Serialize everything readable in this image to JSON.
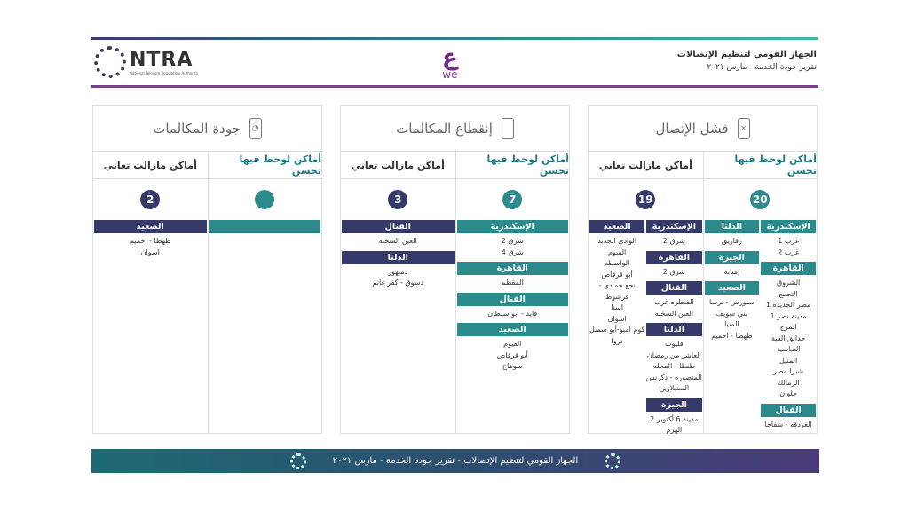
{
  "header": {
    "title": "الجهاز القومي لتنظيم الإتصالات",
    "subtitle": "تقرير جودة الخدمة - مارس ٢٠٢١",
    "ntra_logo": "NTRA",
    "ntra_sub": "National Telecom Regulatory Authority",
    "we_logo": "we"
  },
  "colors": {
    "teal": "#2a8a8c",
    "navy": "#363a6b",
    "purple": "#7a3f8a"
  },
  "cards": [
    {
      "title": "فشل الإتصال",
      "icon": "phone-x-icon",
      "icon_glyph": "×",
      "improved": {
        "label": "أماكن لوحظ فيها تحسن",
        "count": "20",
        "groups": [
          {
            "region": "الإسكندرية",
            "places": [
              "غرب 1",
              "غرب 2"
            ]
          },
          {
            "region": "القاهرة",
            "places": [
              "الشروق",
              "التجمع",
              "مصر الجديدة 1",
              "مدينة نصر 1",
              "المرج",
              "حدائق القبة",
              "العباسية",
              "المنيل",
              "شبرا مصر",
              "الزمالك",
              "حلوان"
            ]
          },
          {
            "region": "القنال",
            "places": [
              "الغردقه - سفاجا"
            ]
          }
        ]
      },
      "improved2": {
        "groups": [
          {
            "region": "الدلتا",
            "places": [
              "زقازيق"
            ]
          },
          {
            "region": "الجيزة",
            "places": [
              "إمبابة"
            ]
          },
          {
            "region": "الصعيد",
            "places": [
              "سنورس - ترسا",
              "بني سويف",
              "المنيا",
              "طهطا - اخميم"
            ]
          }
        ]
      },
      "suffering": {
        "label": "أماكن مازالت تعاني",
        "count": "19",
        "groups": [
          {
            "region": "الإسكندرية",
            "places": [
              "شرق 2"
            ]
          },
          {
            "region": "القاهرة",
            "places": [
              "شرق 2"
            ]
          },
          {
            "region": "القنال",
            "places": [
              "القنطره غرب",
              "العين السخنه"
            ]
          },
          {
            "region": "الدلتا",
            "places": [
              "قليوب",
              "العاشر من رمضان",
              "طنطا - المحله",
              "المنصوره - دكرنس",
              "السنبلاوين"
            ]
          },
          {
            "region": "الجيزة",
            "places": [
              "مدينة 6 أكتوبر 2",
              "الهرم"
            ]
          }
        ]
      },
      "suffering2": {
        "groups": [
          {
            "region": "الصعيد",
            "places": [
              "الوادي الجديد",
              "الفيوم",
              "الواسطه",
              "أبو قرقاص",
              "نجع حمادي - فرشوط",
              "اسنا",
              "اسوان",
              "كوم امبو-أبو سمبل",
              "دروا"
            ]
          }
        ]
      }
    },
    {
      "title": "إنقطاع المكالمات",
      "icon": "phone-icon",
      "icon_glyph": "",
      "improved": {
        "label": "أماكن لوحظ فيها تحسن",
        "count": "7",
        "groups": [
          {
            "region": "الإسكندرية",
            "places": [
              "شرق 2",
              "شرق 4"
            ]
          },
          {
            "region": "القاهرة",
            "places": [
              "المقطم"
            ]
          },
          {
            "region": "القنال",
            "places": [
              "فايد - أبو سلطان"
            ]
          },
          {
            "region": "الصعيد",
            "places": [
              "الفيوم",
              "أبو قرقاص",
              "سوهاج"
            ]
          }
        ]
      },
      "suffering": {
        "label": "أماكن مازالت تعاني",
        "count": "3",
        "groups": [
          {
            "region": "القنال",
            "places": [
              "العين السخنه"
            ]
          },
          {
            "region": "الدلتا",
            "places": [
              "دمنهور",
              "دسوق - كفر غانم"
            ]
          }
        ]
      }
    },
    {
      "title": "جودة المكالمات",
      "icon": "phone-ear-icon",
      "icon_glyph": "◔",
      "improved": {
        "label": "أماكن لوحظ فيها تحسن",
        "count": "",
        "groups": [
          {
            "region": "",
            "places": []
          }
        ]
      },
      "suffering": {
        "label": "أماكن مازالت تعاني",
        "count": "2",
        "groups": [
          {
            "region": "الصعيد",
            "places": [
              "طهطا - اخميم",
              "اسوان"
            ]
          }
        ]
      }
    }
  ],
  "footer": {
    "text": "الجهاز القومي لتنظيم الإتصالات - تقرير جودة الخدمة - مارس ٢٠٢١"
  }
}
